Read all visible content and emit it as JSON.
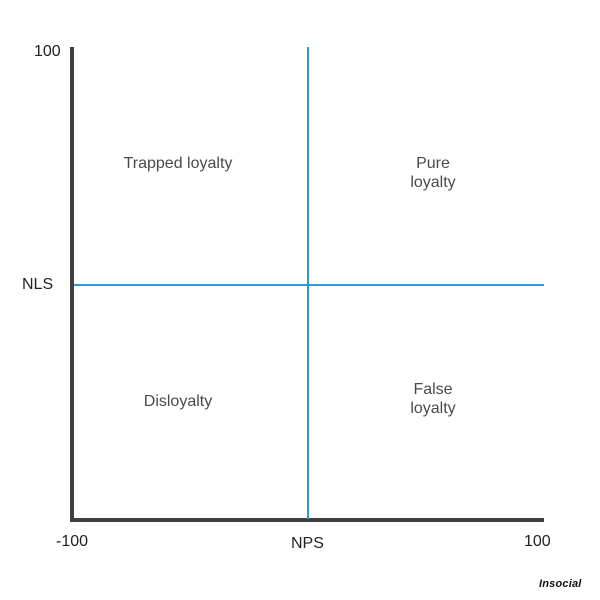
{
  "axes": {
    "y_max_label": "100",
    "y_label": "NLS",
    "x_min_label": "-100",
    "x_label": "NPS",
    "x_max_label": "100"
  },
  "quadrants": {
    "top_left": "Trapped loyalty",
    "top_right": "Pure loyalty",
    "bottom_left": "Disloyalty",
    "bottom_right": "False loyalty"
  },
  "brand": "Insocial",
  "colors": {
    "axis": "#3f3f3f",
    "divider": "#2b9ad6",
    "text": "#4a4a4a"
  }
}
